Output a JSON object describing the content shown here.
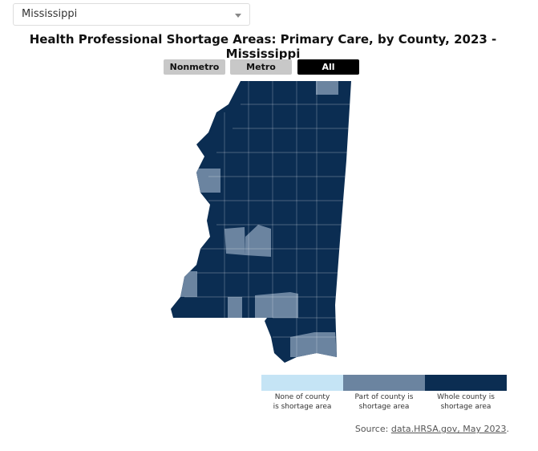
{
  "dropdown": {
    "value": "Mississippi"
  },
  "title": "Health Professional Shortage Areas: Primary Care, by County, 2023 - Mississippi",
  "buttons": [
    {
      "label": "Nonmetro",
      "selected": false
    },
    {
      "label": "Metro",
      "selected": false
    },
    {
      "label": "All",
      "selected": true
    }
  ],
  "legend": [
    {
      "label": "None of county is shortage area",
      "color": "#c5e4f5"
    },
    {
      "label": "Part of county is shortage area",
      "color": "#6b84a0"
    },
    {
      "label": "Whole county is shortage area",
      "color": "#0b2d52"
    }
  ],
  "source": {
    "prefix": "Source:",
    "link": "data.HRSA.gov, May 2023",
    "suffix": "."
  }
}
